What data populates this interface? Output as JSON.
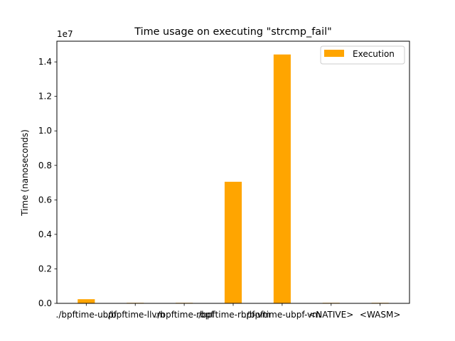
{
  "chart_data": {
    "type": "bar",
    "title": "Time usage on executing \"strcmp_fail\"",
    "xlabel": "",
    "ylabel": "Time (nanoseconds)",
    "y_offset_text": "1e7",
    "y_scale_factor": 10000000,
    "ylim": [
      0,
      1.52
    ],
    "yticks": [
      0.0,
      0.2,
      0.4,
      0.6,
      0.8,
      1.0,
      1.2,
      1.4
    ],
    "ytick_labels": [
      "0.0",
      "0.2",
      "0.4",
      "0.6",
      "0.8",
      "1.0",
      "1.2",
      "1.4"
    ],
    "grid": false,
    "legend_position": "top-right",
    "categories": [
      "./bpftime-ubpf",
      "./bpftime-llvm",
      "./bpftime-rbpf",
      "./bpftime-rbpf-vm",
      "./bpftime-ubpf-vm",
      "<NATIVE>",
      "<WASM>"
    ],
    "series": [
      {
        "name": "Execution",
        "color": "#ffa500",
        "values": [
          0.024,
          0.003,
          0.003,
          0.705,
          1.443,
          0.003,
          0.003
        ]
      }
    ]
  }
}
